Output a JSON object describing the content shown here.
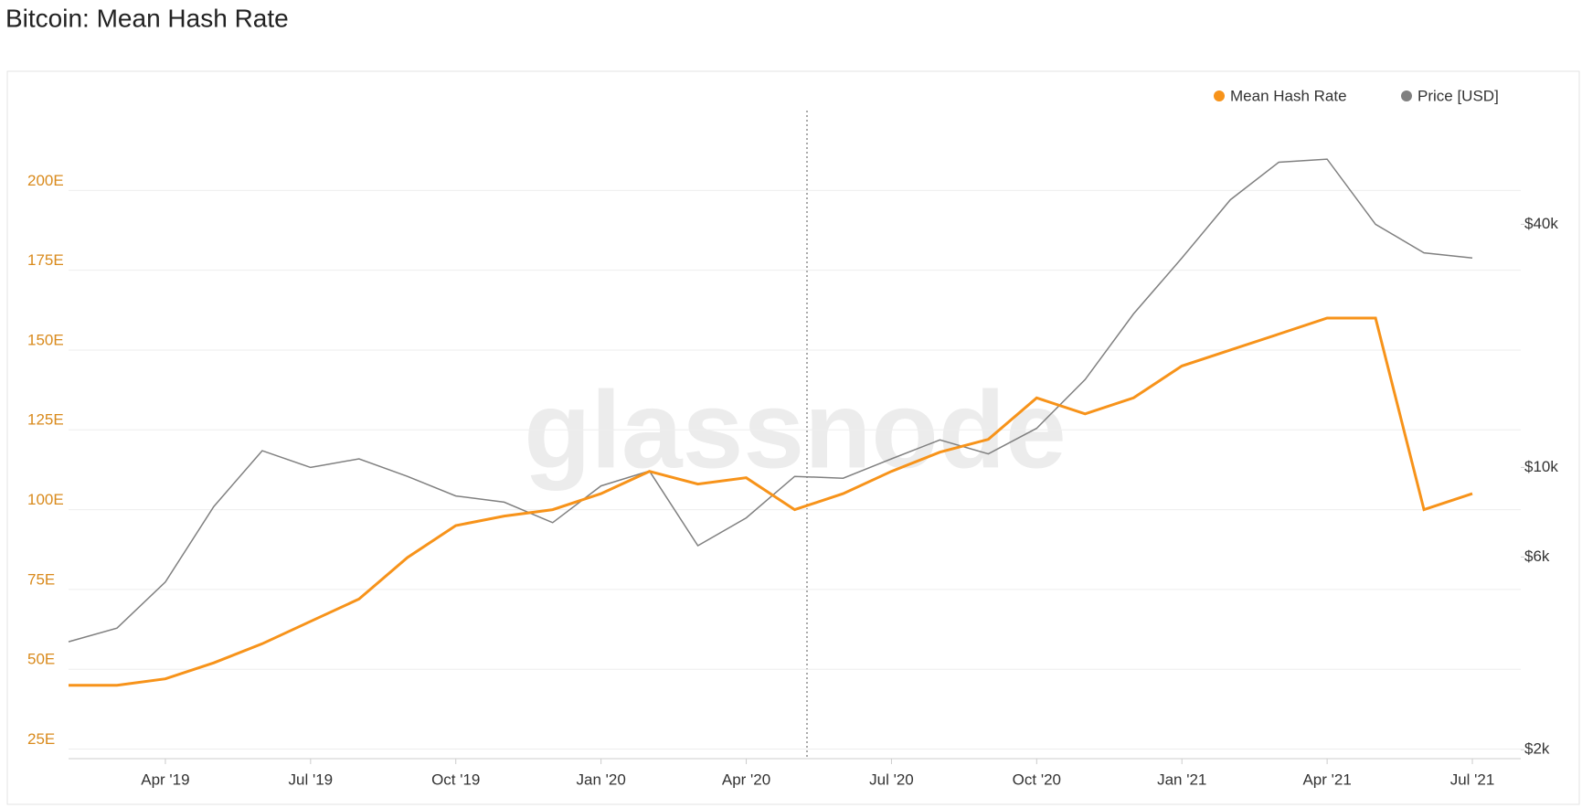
{
  "chart_data": {
    "type": "line",
    "title": "Bitcoin: Mean Hash Rate",
    "watermark": "glassnode",
    "x": [
      "2019-02",
      "2019-03",
      "2019-04",
      "2019-05",
      "2019-06",
      "2019-07",
      "2019-08",
      "2019-09",
      "2019-10",
      "2019-11",
      "2019-12",
      "2020-01",
      "2020-02",
      "2020-03",
      "2020-04",
      "2020-05",
      "2020-06",
      "2020-07",
      "2020-08",
      "2020-09",
      "2020-10",
      "2020-11",
      "2020-12",
      "2021-01",
      "2021-02",
      "2021-03",
      "2021-04",
      "2021-05",
      "2021-06",
      "2021-07"
    ],
    "xlim": [
      "2019-02",
      "2021-08"
    ],
    "xticks": [
      {
        "value": "2019-04",
        "label": "Apr '19"
      },
      {
        "value": "2019-07",
        "label": "Jul '19"
      },
      {
        "value": "2019-10",
        "label": "Oct '19"
      },
      {
        "value": "2020-01",
        "label": "Jan '20"
      },
      {
        "value": "2020-04",
        "label": "Apr '20"
      },
      {
        "value": "2020-07",
        "label": "Jul '20"
      },
      {
        "value": "2020-10",
        "label": "Oct '20"
      },
      {
        "value": "2021-01",
        "label": "Jan '21"
      },
      {
        "value": "2021-04",
        "label": "Apr '21"
      },
      {
        "value": "2021-07",
        "label": "Jul '21"
      }
    ],
    "ylim": [
      22,
      225
    ],
    "yticks": [
      {
        "value": 25,
        "label": "25E"
      },
      {
        "value": 50,
        "label": "50E"
      },
      {
        "value": 75,
        "label": "75E"
      },
      {
        "value": 100,
        "label": "100E"
      },
      {
        "value": 125,
        "label": "125E"
      },
      {
        "value": 150,
        "label": "150E"
      },
      {
        "value": 175,
        "label": "175E"
      },
      {
        "value": 200,
        "label": "200E"
      }
    ],
    "y2lim": [
      1900,
      76500
    ],
    "y2scale": "log",
    "y2ticks": [
      {
        "value": 2000,
        "label": "$2k"
      },
      {
        "value": 6000,
        "label": "$6k"
      },
      {
        "value": 10000,
        "label": "$10k"
      },
      {
        "value": 40000,
        "label": "$40k"
      }
    ],
    "grid": true,
    "legend": "top-right",
    "series": [
      {
        "name": "Mean Hash Rate",
        "color": "#f7931a",
        "values": [
          45,
          45,
          47,
          52,
          58,
          65,
          72,
          85,
          95,
          98,
          100,
          105,
          112,
          108,
          110,
          100,
          105,
          112,
          118,
          122,
          135,
          130,
          135,
          145,
          150,
          155,
          160,
          160,
          100,
          105
        ]
      },
      {
        "name": "Price [USD]",
        "color": "#808080",
        "axis": "y2",
        "values": [
          3700,
          4000,
          5200,
          8000,
          11000,
          10000,
          10500,
          9500,
          8500,
          8200,
          7300,
          9000,
          9800,
          6400,
          7500,
          9500,
          9400,
          10500,
          11700,
          10800,
          12500,
          16500,
          24000,
          33000,
          46000,
          57000,
          58000,
          40000,
          34000,
          33000
        ]
      }
    ]
  }
}
